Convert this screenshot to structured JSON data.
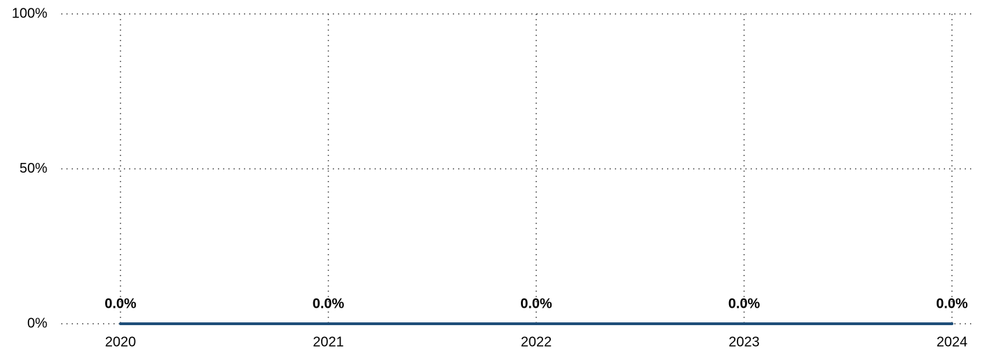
{
  "chart_data": {
    "type": "line",
    "categories": [
      "2020",
      "2021",
      "2022",
      "2023",
      "2024"
    ],
    "series": [
      {
        "color": "#1f4e79",
        "values": [
          0,
          0,
          0,
          0,
          0
        ],
        "value_labels": [
          "0.0%",
          "0.0%",
          "0.0%",
          "0.0%",
          "0.0%"
        ]
      }
    ],
    "ylim": [
      0,
      100
    ],
    "yticks": [
      {
        "value": 0,
        "label": "0%"
      },
      {
        "value": 50,
        "label": "50%"
      },
      {
        "value": 100,
        "label": "100%"
      }
    ],
    "grid": true
  }
}
